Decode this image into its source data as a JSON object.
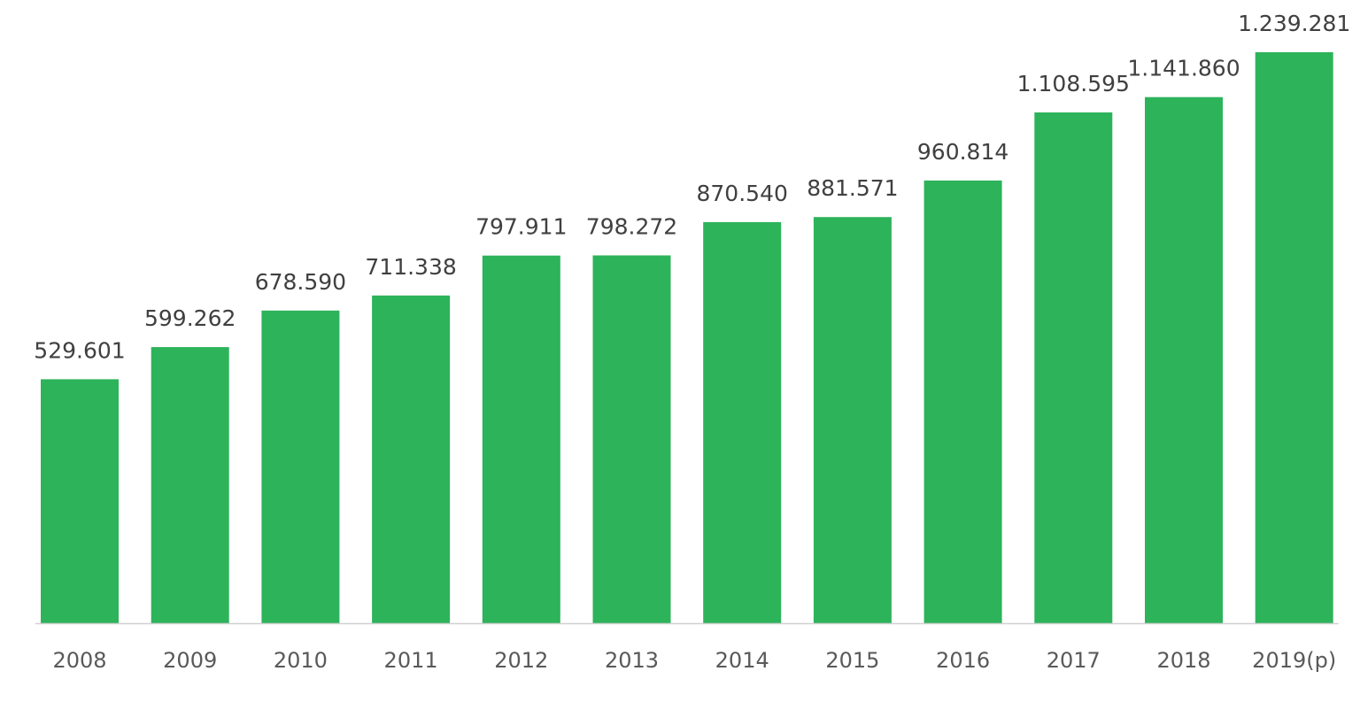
{
  "chart_data": {
    "type": "bar",
    "title": "",
    "xlabel": "",
    "ylabel": "",
    "categories": [
      "2008",
      "2009",
      "2010",
      "2011",
      "2012",
      "2013",
      "2014",
      "2015",
      "2016",
      "2017",
      "2018",
      "2019(p)"
    ],
    "values": [
      529601,
      599262,
      678590,
      711338,
      797911,
      798272,
      870540,
      881571,
      960814,
      1108595,
      1141860,
      1239281
    ],
    "data_labels": [
      "529.601",
      "599.262",
      "678.590",
      "711.338",
      "797.911",
      "798.272",
      "870.540",
      "881.571",
      "960.814",
      "1.108.595",
      "1.141.860",
      "1.239.281"
    ],
    "ylim": [
      0,
      1239281
    ],
    "grid": false,
    "legend": "none",
    "bar_color": "#2db35a",
    "axis_color": "#d0d0d0",
    "label_color": "#404040",
    "tick_color": "#595959"
  }
}
